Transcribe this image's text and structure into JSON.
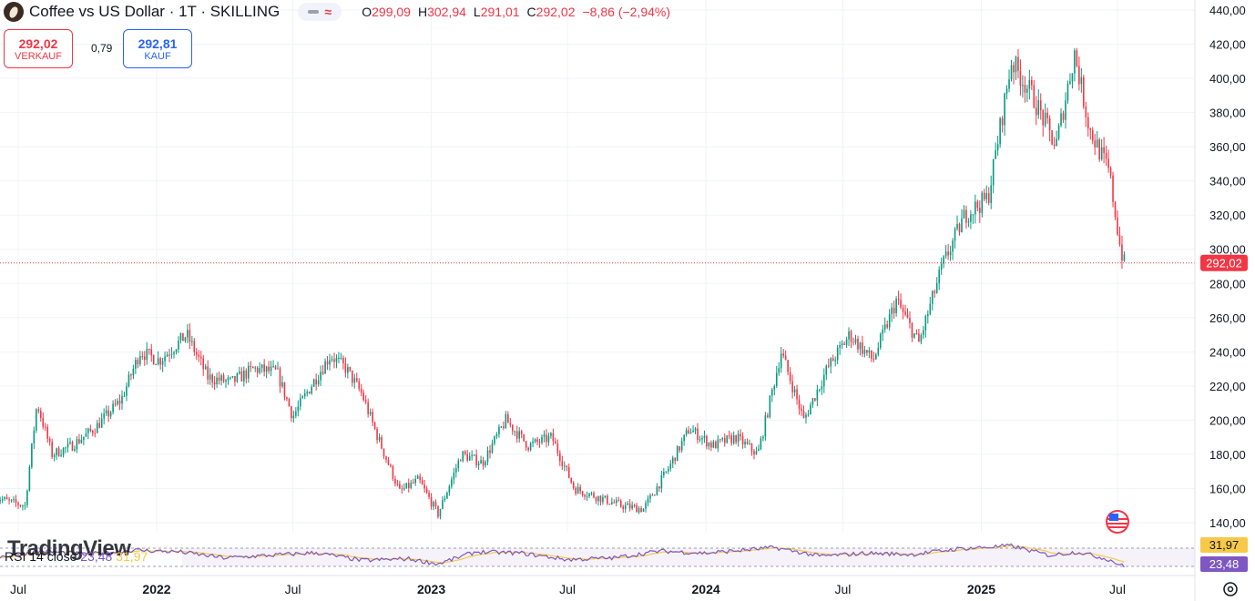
{
  "header": {
    "symbol": "Coffee vs US Dollar · 1T · SKILLING",
    "ohlc": [
      {
        "k": "O",
        "v": "299,09"
      },
      {
        "k": "H",
        "v": "302,94"
      },
      {
        "k": "L",
        "v": "291,01"
      },
      {
        "k": "C",
        "v": "292,02"
      }
    ],
    "change": "−8,86 (−2,94%)"
  },
  "trade": {
    "sell_price": "292,02",
    "sell_label": "VERKAUF",
    "spread": "0,79",
    "buy_price": "292,81",
    "buy_label": "KAUF"
  },
  "rsi": {
    "label": "RSI 14 close",
    "value": "23,48",
    "ma_value": "31,97"
  },
  "watermark": "TradingView",
  "colors": {
    "up": "#089981",
    "down": "#f23645",
    "rsi": "#7e57c2",
    "rsi_ma": "#f7c948",
    "last_price": "#f23645"
  },
  "chart_data": {
    "type": "candlestick",
    "title": "Coffee vs US Dollar · 1T · SKILLING",
    "y_axis": {
      "min": 130,
      "max": 440,
      "ticks": [
        "440,00",
        "420,00",
        "400,00",
        "380,00",
        "360,00",
        "340,00",
        "320,00",
        "300,00",
        "280,00",
        "260,00",
        "240,00",
        "220,00",
        "200,00",
        "180,00",
        "160,00",
        "140,00"
      ]
    },
    "x_axis": {
      "ticks": [
        "Jul",
        "2022",
        "Jul",
        "2023",
        "Jul",
        "2024",
        "Jul",
        "2025",
        "Jul"
      ],
      "bold": [
        "2022",
        "2023",
        "2024",
        "2025"
      ]
    },
    "last_price": "292,02",
    "price_path": [
      {
        "date": "2021-06-01",
        "price": 155
      },
      {
        "date": "2021-06-20",
        "price": 152
      },
      {
        "date": "2021-07-10",
        "price": 150
      },
      {
        "date": "2021-07-26",
        "price": 210
      },
      {
        "date": "2021-08-15",
        "price": 180
      },
      {
        "date": "2021-09-10",
        "price": 185
      },
      {
        "date": "2021-10-10",
        "price": 195
      },
      {
        "date": "2021-11-15",
        "price": 212
      },
      {
        "date": "2021-12-10",
        "price": 240
      },
      {
        "date": "2022-01-05",
        "price": 235
      },
      {
        "date": "2022-02-10",
        "price": 250
      },
      {
        "date": "2022-03-10",
        "price": 225
      },
      {
        "date": "2022-04-10",
        "price": 222
      },
      {
        "date": "2022-05-10",
        "price": 230
      },
      {
        "date": "2022-06-10",
        "price": 228
      },
      {
        "date": "2022-07-01",
        "price": 202
      },
      {
        "date": "2022-07-25",
        "price": 220
      },
      {
        "date": "2022-08-20",
        "price": 238
      },
      {
        "date": "2022-09-10",
        "price": 230
      },
      {
        "date": "2022-10-01",
        "price": 215
      },
      {
        "date": "2022-10-20",
        "price": 192
      },
      {
        "date": "2022-11-20",
        "price": 158
      },
      {
        "date": "2022-12-15",
        "price": 165
      },
      {
        "date": "2023-01-10",
        "price": 145
      },
      {
        "date": "2023-02-10",
        "price": 180
      },
      {
        "date": "2023-03-10",
        "price": 175
      },
      {
        "date": "2023-04-10",
        "price": 200
      },
      {
        "date": "2023-05-10",
        "price": 185
      },
      {
        "date": "2023-06-10",
        "price": 190
      },
      {
        "date": "2023-07-10",
        "price": 160
      },
      {
        "date": "2023-08-10",
        "price": 155
      },
      {
        "date": "2023-09-10",
        "price": 150
      },
      {
        "date": "2023-10-10",
        "price": 148
      },
      {
        "date": "2023-11-10",
        "price": 170
      },
      {
        "date": "2023-12-10",
        "price": 195
      },
      {
        "date": "2024-01-10",
        "price": 185
      },
      {
        "date": "2024-02-10",
        "price": 190
      },
      {
        "date": "2024-03-10",
        "price": 180
      },
      {
        "date": "2024-04-10",
        "price": 240
      },
      {
        "date": "2024-05-10",
        "price": 200
      },
      {
        "date": "2024-06-10",
        "price": 230
      },
      {
        "date": "2024-07-10",
        "price": 250
      },
      {
        "date": "2024-08-10",
        "price": 235
      },
      {
        "date": "2024-09-10",
        "price": 270
      },
      {
        "date": "2024-10-10",
        "price": 245
      },
      {
        "date": "2024-11-10",
        "price": 290
      },
      {
        "date": "2024-12-10",
        "price": 320
      },
      {
        "date": "2025-01-10",
        "price": 330
      },
      {
        "date": "2025-02-10",
        "price": 410
      },
      {
        "date": "2025-03-10",
        "price": 390
      },
      {
        "date": "2025-04-10",
        "price": 360
      },
      {
        "date": "2025-05-05",
        "price": 415
      },
      {
        "date": "2025-05-25",
        "price": 370
      },
      {
        "date": "2025-06-20",
        "price": 345
      },
      {
        "date": "2025-07-05",
        "price": 300
      },
      {
        "date": "2025-07-10",
        "price": 292.02
      }
    ],
    "rsi_series": {
      "name": "RSI 14 close",
      "last_value": 23.48,
      "ma_last_value": 31.97,
      "points": [
        {
          "date": "2021-06-01",
          "value": 45
        },
        {
          "date": "2021-08-01",
          "value": 60
        },
        {
          "date": "2021-10-01",
          "value": 52
        },
        {
          "date": "2021-12-01",
          "value": 62
        },
        {
          "date": "2022-02-01",
          "value": 58
        },
        {
          "date": "2022-04-01",
          "value": 44
        },
        {
          "date": "2022-06-01",
          "value": 50
        },
        {
          "date": "2022-08-01",
          "value": 56
        },
        {
          "date": "2022-10-01",
          "value": 38
        },
        {
          "date": "2022-12-01",
          "value": 42
        },
        {
          "date": "2023-01-10",
          "value": 30
        },
        {
          "date": "2023-03-01",
          "value": 58
        },
        {
          "date": "2023-05-01",
          "value": 55
        },
        {
          "date": "2023-07-01",
          "value": 40
        },
        {
          "date": "2023-09-01",
          "value": 44
        },
        {
          "date": "2023-11-01",
          "value": 60
        },
        {
          "date": "2024-01-01",
          "value": 55
        },
        {
          "date": "2024-04-01",
          "value": 68
        },
        {
          "date": "2024-06-01",
          "value": 48
        },
        {
          "date": "2024-08-01",
          "value": 55
        },
        {
          "date": "2024-10-01",
          "value": 52
        },
        {
          "date": "2024-12-01",
          "value": 65
        },
        {
          "date": "2025-02-10",
          "value": 72
        },
        {
          "date": "2025-04-01",
          "value": 50
        },
        {
          "date": "2025-05-10",
          "value": 58
        },
        {
          "date": "2025-06-20",
          "value": 40
        },
        {
          "date": "2025-07-10",
          "value": 23.48
        }
      ]
    }
  }
}
